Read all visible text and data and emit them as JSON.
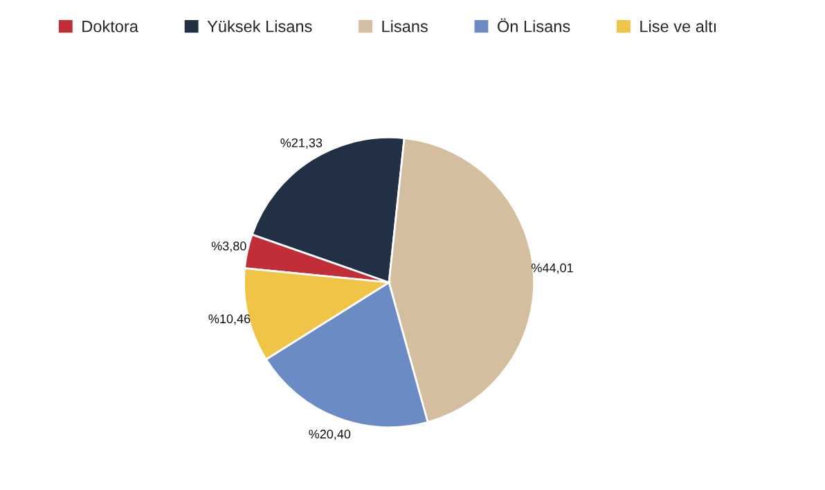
{
  "chart_data": {
    "type": "pie",
    "categories": [
      "Doktora",
      "Yüksek Lisans",
      "Lisans",
      "Ön Lisans",
      "Lise ve altı"
    ],
    "values": [
      3.8,
      21.33,
      44.01,
      20.4,
      10.46
    ],
    "colors": [
      "#c22e38",
      "#213045",
      "#d3bf9f",
      "#6a8bc3",
      "#f0c446"
    ],
    "value_labels": [
      "%3,80",
      "%21,33",
      "%44,01",
      "%20,40",
      "%10,46"
    ],
    "legend": "top"
  }
}
